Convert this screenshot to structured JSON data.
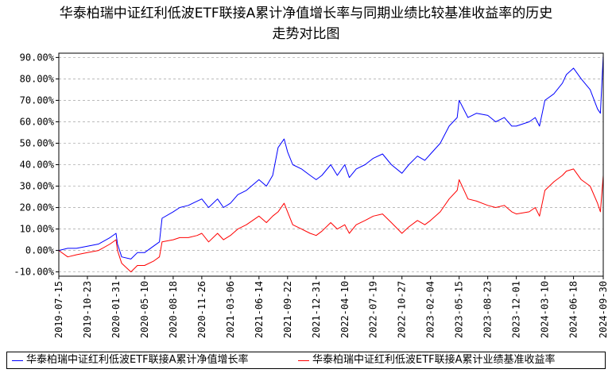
{
  "title_line1": "华泰柏瑞中证红利低波ETF联接A累计净值增长率与同期业绩比较基准收益率的历史",
  "title_line2": "走势对比图",
  "chart_data": {
    "type": "line",
    "title": "华泰柏瑞中证红利低波ETF联接A累计净值增长率与同期业绩比较基准收益率的历史走势对比图",
    "x_ticks": [
      "2019-07-15",
      "2019-10-23",
      "2020-01-31",
      "2020-05-10",
      "2020-08-18",
      "2020-11-26",
      "2021-03-06",
      "2021-06-14",
      "2021-09-22",
      "2021-12-31",
      "2022-04-10",
      "2022-07-19",
      "2022-10-27",
      "2023-02-04",
      "2023-05-15",
      "2023-08-23",
      "2023-12-01",
      "2024-03-10",
      "2024-06-18",
      "2024-09-30"
    ],
    "y_ticks": [
      "90.00%",
      "80.00%",
      "70.00%",
      "60.00%",
      "50.00%",
      "40.00%",
      "30.00%",
      "20.00%",
      "10.00%",
      "0.00%",
      "-10.00%"
    ],
    "ylim": [
      -12,
      92
    ],
    "grid": true,
    "legend_placement": "bottom",
    "series": [
      {
        "name": "华泰柏瑞中证红利低波ETF联接A累计净值增长率",
        "color": "#0000ff",
        "x": [
          "2019-07-15",
          "2019-08-15",
          "2019-09-15",
          "2019-10-23",
          "2019-12-01",
          "2020-01-10",
          "2020-01-31",
          "2020-02-05",
          "2020-02-20",
          "2020-03-23",
          "2020-04-15",
          "2020-05-10",
          "2020-06-10",
          "2020-07-01",
          "2020-07-10",
          "2020-08-18",
          "2020-09-10",
          "2020-10-10",
          "2020-11-10",
          "2020-11-26",
          "2020-12-20",
          "2021-01-20",
          "2021-02-10",
          "2021-03-06",
          "2021-04-01",
          "2021-05-01",
          "2021-06-14",
          "2021-07-10",
          "2021-08-01",
          "2021-08-20",
          "2021-09-10",
          "2021-09-22",
          "2021-10-10",
          "2021-11-10",
          "2021-12-10",
          "2021-12-31",
          "2022-01-20",
          "2022-02-20",
          "2022-03-15",
          "2022-04-10",
          "2022-04-26",
          "2022-05-20",
          "2022-06-20",
          "2022-07-19",
          "2022-08-20",
          "2022-09-20",
          "2022-10-27",
          "2022-11-20",
          "2022-12-20",
          "2023-01-15",
          "2023-02-04",
          "2023-03-10",
          "2023-04-10",
          "2023-05-08",
          "2023-05-15",
          "2023-06-15",
          "2023-07-15",
          "2023-08-23",
          "2023-09-20",
          "2023-10-20",
          "2023-11-15",
          "2023-12-01",
          "2024-01-15",
          "2024-02-05",
          "2024-02-20",
          "2024-03-10",
          "2024-04-10",
          "2024-05-10",
          "2024-05-24",
          "2024-06-18",
          "2024-07-15",
          "2024-08-15",
          "2024-09-10",
          "2024-09-20",
          "2024-09-30"
        ],
        "values": [
          0,
          1,
          1,
          2,
          3,
          6,
          8,
          3,
          -3,
          -4,
          -1,
          -1,
          2,
          4,
          15,
          18,
          20,
          21,
          23,
          24,
          20,
          24,
          20,
          22,
          26,
          28,
          33,
          30,
          35,
          48,
          52,
          46,
          40,
          38,
          35,
          33,
          35,
          40,
          35,
          40,
          34,
          38,
          40,
          43,
          45,
          40,
          36,
          40,
          44,
          42,
          45,
          50,
          58,
          62,
          70,
          62,
          64,
          63,
          60,
          62,
          58,
          58,
          60,
          62,
          58,
          70,
          73,
          78,
          82,
          85,
          80,
          75,
          66,
          64,
          91
        ]
      },
      {
        "name": "华泰柏瑞中证红利低波ETF联接A累计业绩基准收益率",
        "color": "#ff0000",
        "x": [
          "2019-07-15",
          "2019-08-15",
          "2019-09-15",
          "2019-10-23",
          "2019-12-01",
          "2020-01-10",
          "2020-01-31",
          "2020-02-05",
          "2020-02-20",
          "2020-03-23",
          "2020-04-15",
          "2020-05-10",
          "2020-06-10",
          "2020-07-01",
          "2020-07-10",
          "2020-08-18",
          "2020-09-10",
          "2020-10-10",
          "2020-11-10",
          "2020-11-26",
          "2020-12-20",
          "2021-01-20",
          "2021-02-10",
          "2021-03-06",
          "2021-04-01",
          "2021-05-01",
          "2021-06-14",
          "2021-07-10",
          "2021-08-01",
          "2021-08-20",
          "2021-09-10",
          "2021-09-22",
          "2021-10-10",
          "2021-11-10",
          "2021-12-10",
          "2021-12-31",
          "2022-01-20",
          "2022-02-20",
          "2022-03-15",
          "2022-04-10",
          "2022-04-26",
          "2022-05-20",
          "2022-06-20",
          "2022-07-19",
          "2022-08-20",
          "2022-09-20",
          "2022-10-27",
          "2022-11-20",
          "2022-12-20",
          "2023-01-15",
          "2023-02-04",
          "2023-03-10",
          "2023-04-10",
          "2023-05-08",
          "2023-05-15",
          "2023-06-15",
          "2023-07-15",
          "2023-08-23",
          "2023-09-20",
          "2023-10-20",
          "2023-11-15",
          "2023-12-01",
          "2024-01-15",
          "2024-02-05",
          "2024-02-20",
          "2024-03-10",
          "2024-04-10",
          "2024-05-10",
          "2024-05-24",
          "2024-06-18",
          "2024-07-15",
          "2024-08-15",
          "2024-09-10",
          "2024-09-20",
          "2024-09-30"
        ],
        "values": [
          0,
          -3,
          -2,
          -1,
          0,
          3,
          5,
          0,
          -6,
          -10,
          -7,
          -7,
          -5,
          -3,
          4,
          5,
          6,
          6,
          7,
          8,
          4,
          8,
          5,
          7,
          10,
          12,
          16,
          13,
          16,
          18,
          22,
          18,
          12,
          10,
          8,
          7,
          9,
          13,
          10,
          12,
          8,
          12,
          14,
          16,
          17,
          13,
          8,
          11,
          14,
          12,
          14,
          18,
          24,
          28,
          33,
          24,
          23,
          21,
          20,
          21,
          18,
          17,
          18,
          20,
          16,
          28,
          32,
          35,
          37,
          38,
          33,
          30,
          22,
          18,
          35
        ]
      }
    ]
  },
  "legend": {
    "item1": "华泰柏瑞中证红利低波ETF联接A累计净值增长率",
    "item2": "华泰柏瑞中证红利低波ETF联接A累计业绩基准收益率"
  }
}
